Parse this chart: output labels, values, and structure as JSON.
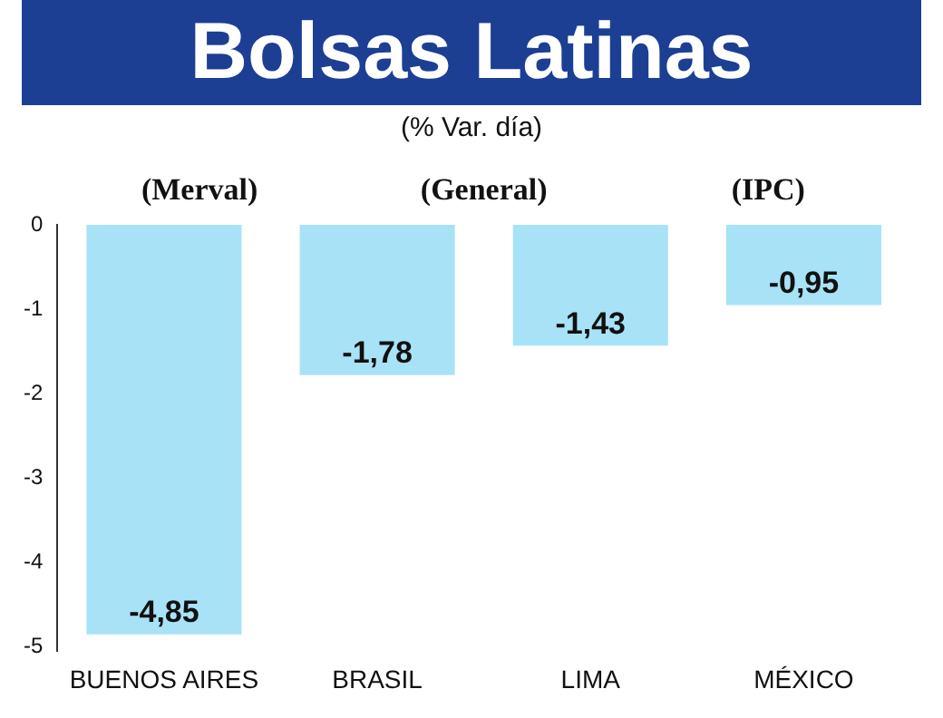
{
  "chart_data": {
    "type": "bar",
    "title": "Bolsas Latinas",
    "subtitle": "(% Var. día)",
    "categories": [
      "BUENOS AIRES",
      "BRASIL",
      "LIMA",
      "MÉXICO"
    ],
    "values": [
      -4.85,
      -1.78,
      -1.43,
      -0.95
    ],
    "value_labels": [
      "-4,85",
      "-1,78",
      "-1,43",
      "-0,95"
    ],
    "color": "#a8e2f6",
    "ylim": [
      -5.05,
      0
    ],
    "yticks": [
      0,
      -1,
      -2,
      -3,
      -4,
      -5
    ],
    "grid": false,
    "legend": false,
    "annotations": [
      "(Merval)",
      "(General)",
      "(IPC)"
    ]
  }
}
